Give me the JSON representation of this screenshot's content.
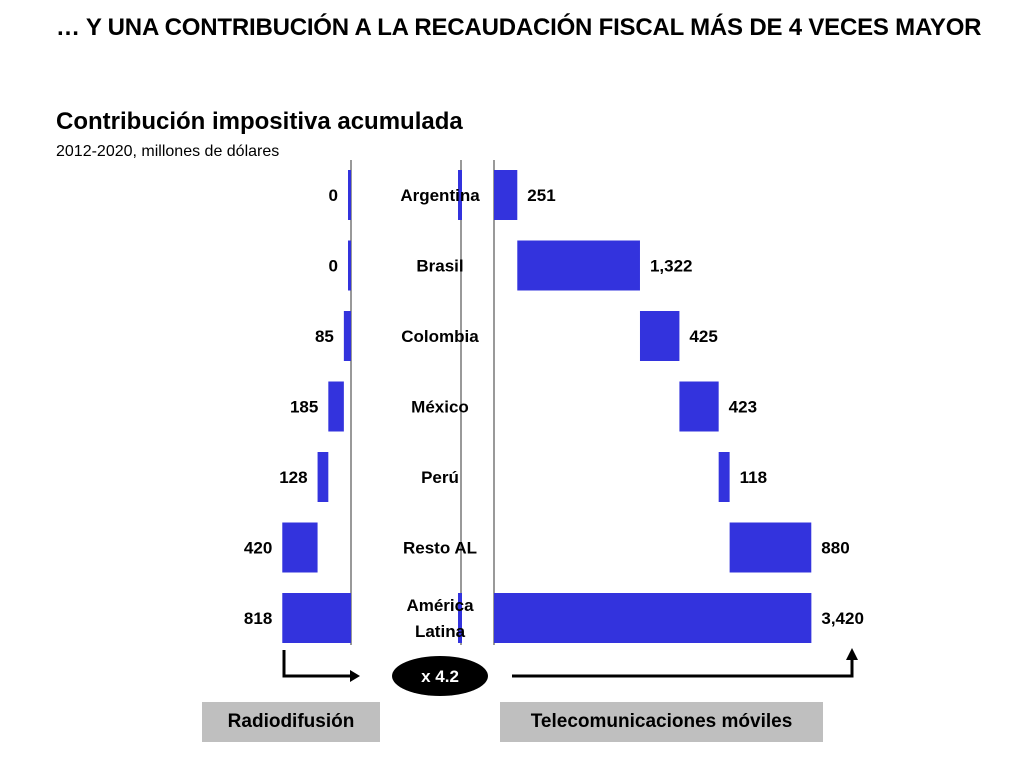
{
  "slide": {
    "title": "… Y UNA CONTRIBUCIÓN A LA RECAUDACIÓN FISCAL MÁS DE 4 VECES MAYOR",
    "broadcast_label": "Radiodifusión",
    "mobile_label": "Telecomunicaciones móviles",
    "multiplier": "x  4.2"
  },
  "colors": {
    "bar": "#3333dd",
    "axis": "#999999",
    "box": "#bfbfbf",
    "pill": "#000000"
  },
  "chart_data": {
    "type": "bar",
    "title": "Contribución impositiva acumulada",
    "subtitle": "2012-2020, millones de dólares",
    "categories": [
      "Argentina",
      "Brasil",
      "Colombia",
      "México",
      "Perú",
      "Resto AL",
      "América Latina"
    ],
    "category_lines": [
      [
        "Argentina"
      ],
      [
        "Brasil"
      ],
      [
        "Colombia"
      ],
      [
        "México"
      ],
      [
        "Perú"
      ],
      [
        "Resto AL"
      ],
      [
        "América",
        "Latina"
      ]
    ],
    "series": [
      {
        "name": "Radiodifusión",
        "values": [
          0,
          0,
          85,
          185,
          128,
          420,
          818
        ],
        "labels": [
          "0",
          "0",
          "85",
          "185",
          "128",
          "420",
          "818"
        ]
      },
      {
        "name": "Telecomunicaciones móviles",
        "values": [
          251,
          1322,
          425,
          423,
          118,
          880,
          3420
        ],
        "labels": [
          "251",
          "1,322",
          "425",
          "423",
          "118",
          "880",
          "3,420"
        ]
      }
    ],
    "layout": "waterfall"
  }
}
